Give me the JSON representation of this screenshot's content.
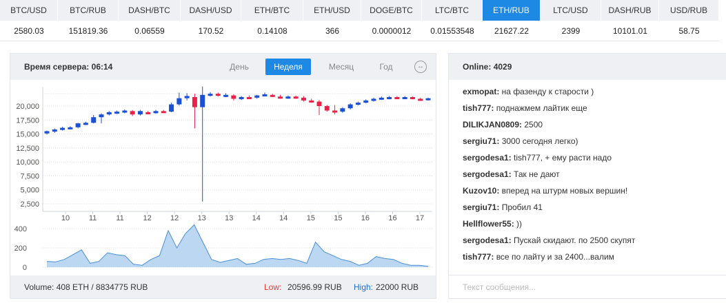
{
  "ticker": [
    {
      "pair": "BTC/USD",
      "value": "2580.03",
      "active": false
    },
    {
      "pair": "BTC/RUB",
      "value": "151819.36",
      "active": false
    },
    {
      "pair": "DASH/BTC",
      "value": "0.06559",
      "active": false
    },
    {
      "pair": "DASH/USD",
      "value": "170.52",
      "active": false
    },
    {
      "pair": "ETH/BTC",
      "value": "0.14108",
      "active": false
    },
    {
      "pair": "ETH/USD",
      "value": "366",
      "active": false
    },
    {
      "pair": "DOGE/BTC",
      "value": "0.0000012",
      "active": false
    },
    {
      "pair": "LTC/BTC",
      "value": "0.01553548",
      "active": false
    },
    {
      "pair": "ETH/RUB",
      "value": "21627.22",
      "active": true
    },
    {
      "pair": "LTC/USD",
      "value": "2399",
      "active": false
    },
    {
      "pair": "DASH/RUB",
      "value": "10101.01",
      "active": false
    },
    {
      "pair": "USD/RUB",
      "value": "58.75",
      "active": false
    }
  ],
  "chart_panel": {
    "server_time_label": "Время сервера:",
    "server_time": "06:14",
    "periods": [
      "День",
      "Неделя",
      "Месяц",
      "Год"
    ],
    "active_period": "Неделя",
    "expand_icon": "↔",
    "footer": {
      "volume": "Volume: 408 ETH / 8834775 RUB",
      "low_label": "Low:",
      "low_value": "20596.99 RUB",
      "high_label": "High:",
      "high_value": "22000 RUB"
    }
  },
  "chart_data": [
    {
      "type": "candlestick",
      "title": "",
      "ylabel": "",
      "y_ticks": [
        "2,500",
        "5,000",
        "7,500",
        "10,000",
        "12,500",
        "15,000",
        "17,500",
        "20,000"
      ],
      "x_ticks": [
        "10",
        "11",
        "11",
        "12",
        "12",
        "13",
        "13",
        "14",
        "14",
        "15",
        "15",
        "16",
        "16",
        "17"
      ],
      "up_color": "#1a4fd6",
      "down_color": "#e8234a",
      "candles": [
        {
          "o": 15100,
          "h": 15600,
          "l": 14900,
          "c": 15500
        },
        {
          "o": 15500,
          "h": 16000,
          "l": 15200,
          "c": 15800
        },
        {
          "o": 15800,
          "h": 16300,
          "l": 15600,
          "c": 16100
        },
        {
          "o": 16100,
          "h": 16400,
          "l": 15900,
          "c": 16200
        },
        {
          "o": 16200,
          "h": 17000,
          "l": 16000,
          "c": 16900
        },
        {
          "o": 16900,
          "h": 17200,
          "l": 16600,
          "c": 17000
        },
        {
          "o": 17000,
          "h": 18400,
          "l": 16900,
          "c": 18000
        },
        {
          "o": 18000,
          "h": 18700,
          "l": 16900,
          "c": 18500
        },
        {
          "o": 18500,
          "h": 19100,
          "l": 18300,
          "c": 18900
        },
        {
          "o": 18900,
          "h": 19200,
          "l": 18600,
          "c": 19000
        },
        {
          "o": 19000,
          "h": 19400,
          "l": 18700,
          "c": 19200
        },
        {
          "o": 19100,
          "h": 19300,
          "l": 18200,
          "c": 18500
        },
        {
          "o": 18500,
          "h": 19300,
          "l": 18300,
          "c": 19100
        },
        {
          "o": 18900,
          "h": 19100,
          "l": 18600,
          "c": 18800
        },
        {
          "o": 18800,
          "h": 19300,
          "l": 18600,
          "c": 19100
        },
        {
          "o": 19100,
          "h": 19300,
          "l": 18900,
          "c": 19000
        },
        {
          "o": 19000,
          "h": 20600,
          "l": 18900,
          "c": 20300
        },
        {
          "o": 20300,
          "h": 22400,
          "l": 20100,
          "c": 21400
        },
        {
          "o": 21400,
          "h": 22300,
          "l": 21000,
          "c": 21800
        },
        {
          "o": 21600,
          "h": 22200,
          "l": 16000,
          "c": 19800
        },
        {
          "o": 19800,
          "h": 23500,
          "l": 2900,
          "c": 22000
        },
        {
          "o": 22000,
          "h": 22500,
          "l": 21700,
          "c": 22200
        },
        {
          "o": 22200,
          "h": 22400,
          "l": 21700,
          "c": 21900
        },
        {
          "o": 21900,
          "h": 22300,
          "l": 21600,
          "c": 22000
        },
        {
          "o": 21900,
          "h": 22100,
          "l": 21000,
          "c": 21300
        },
        {
          "o": 21300,
          "h": 21800,
          "l": 21100,
          "c": 21600
        },
        {
          "o": 21600,
          "h": 21900,
          "l": 21300,
          "c": 21500
        },
        {
          "o": 21500,
          "h": 22000,
          "l": 21300,
          "c": 21900
        },
        {
          "o": 21900,
          "h": 22400,
          "l": 21800,
          "c": 22100
        },
        {
          "o": 22000,
          "h": 22200,
          "l": 21600,
          "c": 21700
        },
        {
          "o": 21700,
          "h": 22000,
          "l": 21300,
          "c": 21500
        },
        {
          "o": 21500,
          "h": 21900,
          "l": 21300,
          "c": 21700
        },
        {
          "o": 21700,
          "h": 21900,
          "l": 21300,
          "c": 21500
        },
        {
          "o": 21500,
          "h": 21800,
          "l": 20800,
          "c": 21000
        },
        {
          "o": 21000,
          "h": 21300,
          "l": 20600,
          "c": 20800
        },
        {
          "o": 20800,
          "h": 21100,
          "l": 18400,
          "c": 20000
        },
        {
          "o": 20000,
          "h": 20200,
          "l": 19000,
          "c": 19200
        },
        {
          "o": 19200,
          "h": 20200,
          "l": 18500,
          "c": 19000
        },
        {
          "o": 19000,
          "h": 19800,
          "l": 18800,
          "c": 19600
        },
        {
          "o": 19600,
          "h": 20500,
          "l": 19400,
          "c": 20300
        },
        {
          "o": 20300,
          "h": 20800,
          "l": 20100,
          "c": 20600
        },
        {
          "o": 20600,
          "h": 21200,
          "l": 20500,
          "c": 21000
        },
        {
          "o": 21000,
          "h": 21500,
          "l": 20800,
          "c": 21300
        },
        {
          "o": 21300,
          "h": 21700,
          "l": 21100,
          "c": 21500
        },
        {
          "o": 21500,
          "h": 21800,
          "l": 21200,
          "c": 21600
        },
        {
          "o": 21600,
          "h": 21800,
          "l": 21300,
          "c": 21400
        },
        {
          "o": 21400,
          "h": 21800,
          "l": 21300,
          "c": 21600
        },
        {
          "o": 21600,
          "h": 21700,
          "l": 21200,
          "c": 21300
        },
        {
          "o": 21300,
          "h": 21500,
          "l": 21100,
          "c": 21200
        },
        {
          "o": 21100,
          "h": 21500,
          "l": 21000,
          "c": 21400
        }
      ]
    },
    {
      "type": "area",
      "title": "",
      "y_ticks": [
        "0",
        "200",
        "400"
      ],
      "ylim": [
        0,
        450
      ],
      "fill_color": "#bcd7f2",
      "line_color": "#4a8fd8",
      "values": [
        60,
        55,
        80,
        130,
        180,
        40,
        60,
        150,
        130,
        120,
        30,
        20,
        80,
        120,
        380,
        200,
        350,
        440,
        260,
        80,
        50,
        70,
        90,
        30,
        40,
        80,
        90,
        80,
        90,
        70,
        40,
        260,
        160,
        120,
        80,
        60,
        20,
        40,
        110,
        90,
        80,
        40,
        20,
        20,
        10
      ]
    }
  ],
  "chat": {
    "online_label": "Online:",
    "online_count": "4029",
    "messages": [
      {
        "user": "exmopat:",
        "text": "на фазенду к старости )"
      },
      {
        "user": "tish777:",
        "text": "поднажмем лайтик еще"
      },
      {
        "user": "DILIKJAN0809:",
        "text": "2500"
      },
      {
        "user": "sergiu71:",
        "text": "3000 сегодня легко)"
      },
      {
        "user": "sergodesa1:",
        "text": "tish777, + ему расти надо"
      },
      {
        "user": "sergodesa1:",
        "text": "Так не дают"
      },
      {
        "user": "Kuzov10:",
        "text": "вперед на штурм новых вершин!"
      },
      {
        "user": "sergiu71:",
        "text": "Пробил 41"
      },
      {
        "user": "Hellflower55:",
        "text": "))"
      },
      {
        "user": "sergodesa1:",
        "text": "Пускай скидают. по 2500 скупят"
      },
      {
        "user": "tish777:",
        "text": "все по лайту и за 2400...валим"
      }
    ],
    "input_placeholder": "Текст сообщения..."
  }
}
